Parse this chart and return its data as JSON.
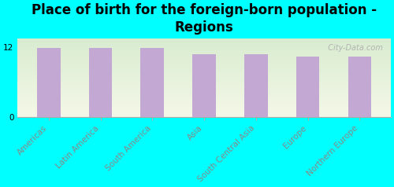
{
  "title": "Place of birth for the foreign-born population -\nRegions",
  "categories": [
    "Americas",
    "Latin America",
    "South America",
    "Asia",
    "South Central Asia",
    "Europe",
    "Northern Europe"
  ],
  "values": [
    11.8,
    11.8,
    11.8,
    10.8,
    10.8,
    10.3,
    10.3
  ],
  "bar_color": "#c4a8d4",
  "background_color": "#00ffff",
  "plot_bg_top": "#f5f8e8",
  "plot_bg_bottom": "#d8ecd0",
  "yticks": [
    0,
    12
  ],
  "ylim": [
    0,
    13.5
  ],
  "watermark": "  City-Data.com",
  "title_fontsize": 12,
  "tick_label_fontsize": 7.5,
  "watermark_fontsize": 7
}
